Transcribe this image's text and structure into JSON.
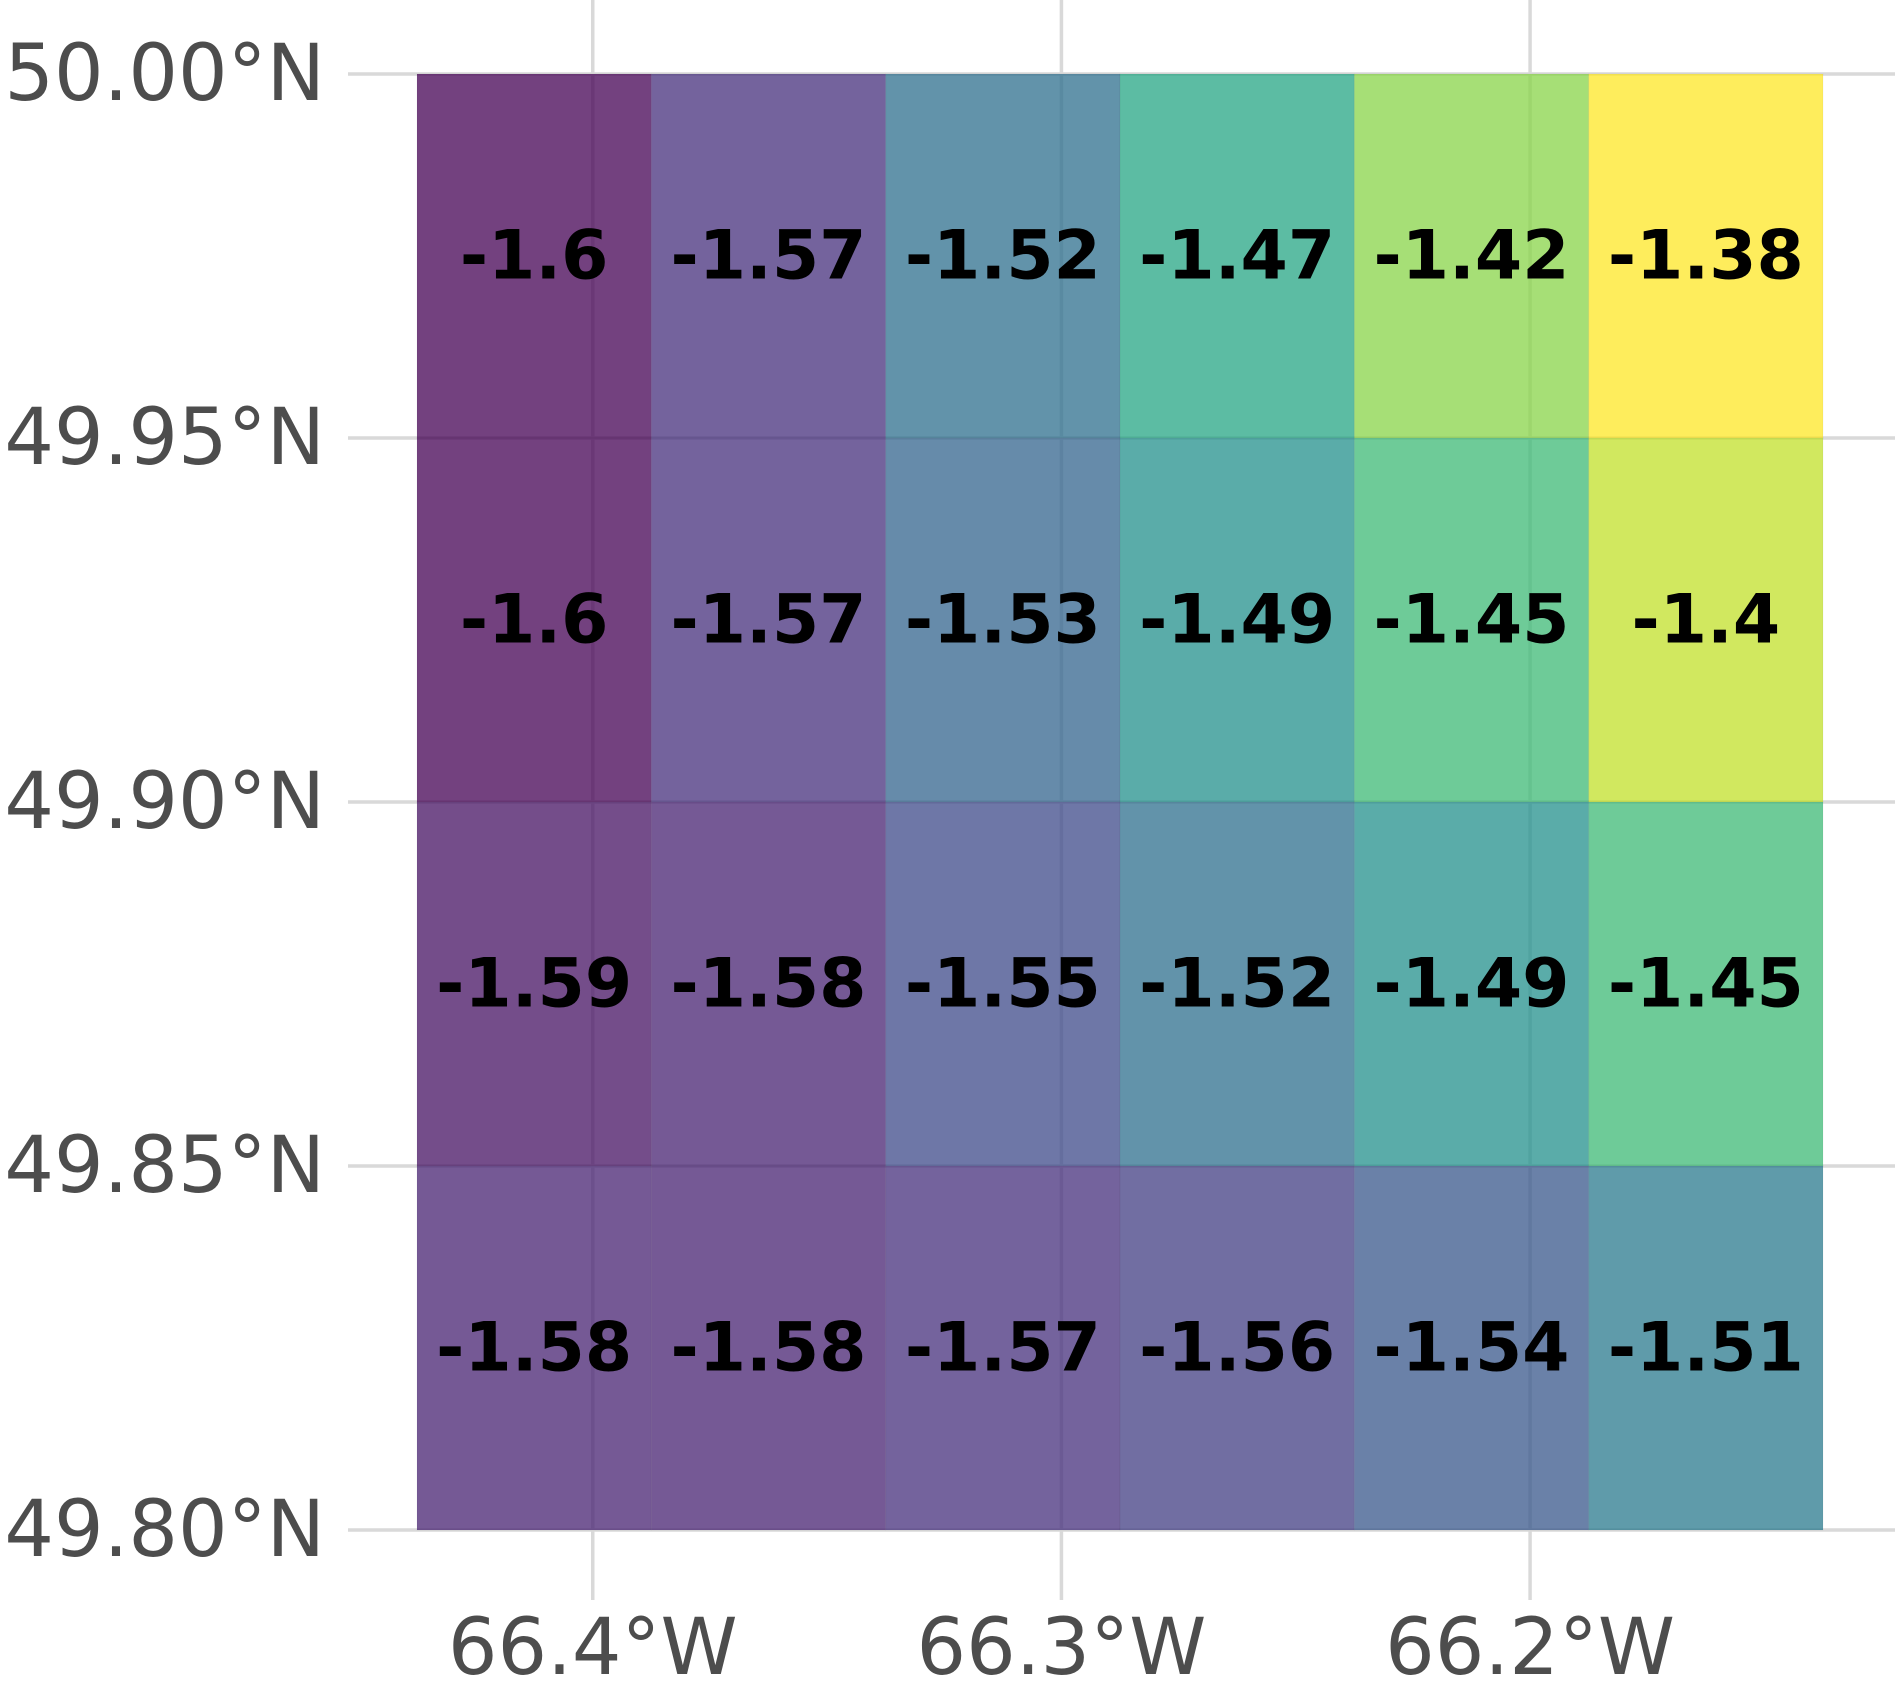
{
  "chart_data": {
    "type": "heatmap",
    "title": "",
    "xlabel": "",
    "ylabel": "",
    "x_ticks": [
      {
        "value": -66.4,
        "label": "66.4°W"
      },
      {
        "value": -66.3,
        "label": "66.3°W"
      },
      {
        "value": -66.2,
        "label": "66.2°W"
      }
    ],
    "y_ticks": [
      {
        "value": 50.0,
        "label": "50.00°N"
      },
      {
        "value": 49.95,
        "label": "49.95°N"
      },
      {
        "value": 49.9,
        "label": "49.90°N"
      },
      {
        "value": 49.85,
        "label": "49.85°N"
      },
      {
        "value": 49.8,
        "label": "49.80°N"
      }
    ],
    "xlim": [
      -66.4525,
      -66.1325
    ],
    "ylim": [
      49.79,
      50.01
    ],
    "x_edges": [
      -66.4375,
      -66.3875,
      -66.3375,
      -66.2875,
      -66.2375,
      -66.1875,
      -66.1375
    ],
    "y_edges": [
      50.0,
      49.95,
      49.9,
      49.85,
      49.8
    ],
    "rows": [
      {
        "values": [
          -1.6,
          -1.57,
          -1.52,
          -1.47,
          -1.42,
          -1.38
        ],
        "labels": [
          "-1.6",
          "-1.57",
          "-1.52",
          "-1.47",
          "-1.42",
          "-1.38"
        ]
      },
      {
        "values": [
          -1.6,
          -1.57,
          -1.53,
          -1.49,
          -1.45,
          -1.4
        ],
        "labels": [
          "-1.6",
          "-1.57",
          "-1.53",
          "-1.49",
          "-1.45",
          "-1.4"
        ]
      },
      {
        "values": [
          -1.59,
          -1.58,
          -1.55,
          -1.52,
          -1.49,
          -1.45
        ],
        "labels": [
          "-1.59",
          "-1.58",
          "-1.55",
          "-1.52",
          "-1.49",
          "-1.45"
        ]
      },
      {
        "values": [
          -1.58,
          -1.58,
          -1.57,
          -1.56,
          -1.54,
          -1.51
        ],
        "labels": [
          "-1.58",
          "-1.58",
          "-1.57",
          "-1.56",
          "-1.54",
          "-1.51"
        ]
      }
    ],
    "color_scale": {
      "name": "viridis",
      "min": -1.6,
      "max": -1.38,
      "stops": [
        "#440154",
        "#482878",
        "#3e4989",
        "#31688e",
        "#26828e",
        "#1f9e89",
        "#35b779",
        "#6ece58",
        "#b5de2b",
        "#fde725"
      ]
    },
    "grid": true,
    "legend": "none"
  },
  "colors": {
    "gridline": "#d9d9d9",
    "tick_text": "#4d4d4d",
    "cell_text": "#000000",
    "background": "#ffffff"
  }
}
